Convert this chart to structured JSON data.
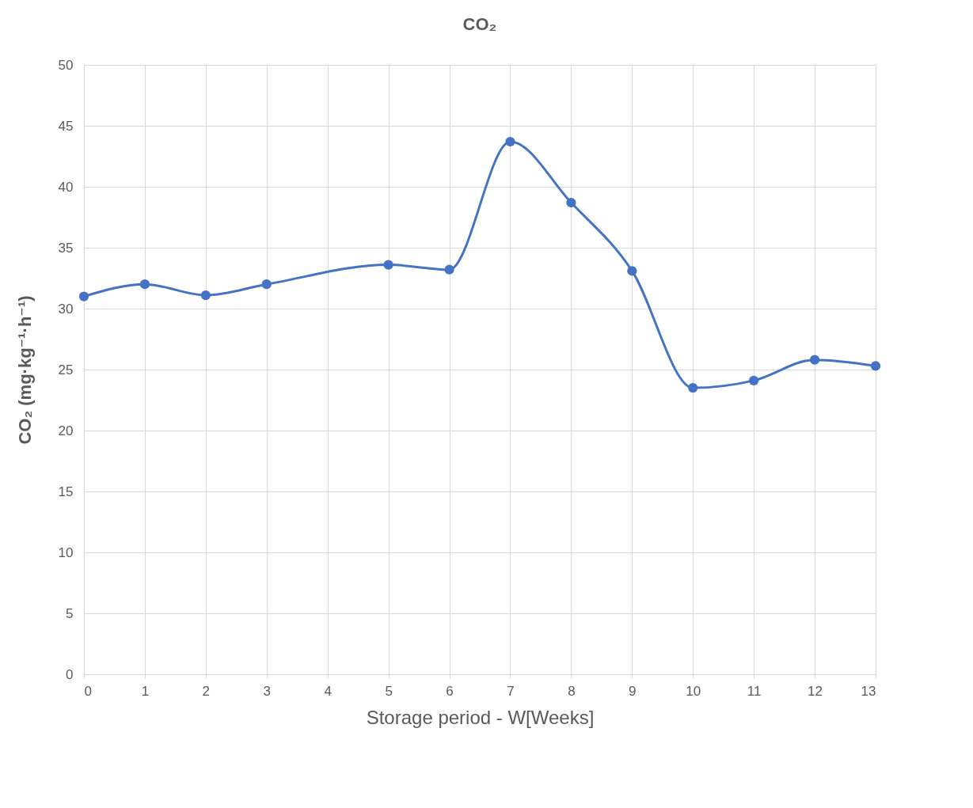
{
  "chart_data": {
    "type": "line",
    "title": "CO₂",
    "xlabel": "Storage period - W[Weeks]",
    "ylabel": "CO₂ (mg·kg⁻¹·h⁻¹)",
    "x": [
      0,
      1,
      2,
      3,
      5,
      6,
      7,
      8,
      9,
      10,
      11,
      12,
      13
    ],
    "series": [
      {
        "color": "#4472c4",
        "values": [
          31.0,
          32.0,
          31.1,
          32.0,
          33.6,
          33.2,
          43.7,
          38.7,
          33.1,
          23.5,
          24.1,
          25.8,
          25.3
        ]
      }
    ],
    "xlim": [
      0,
      13
    ],
    "xticks": [
      0,
      1,
      2,
      3,
      4,
      5,
      6,
      7,
      8,
      9,
      10,
      11,
      12,
      13
    ],
    "ylim": [
      0,
      50
    ],
    "yticks": [
      0,
      5,
      10,
      15,
      20,
      25,
      30,
      35,
      40,
      45,
      50
    ],
    "grid": true,
    "marker": "circle",
    "line_style": "solid"
  }
}
